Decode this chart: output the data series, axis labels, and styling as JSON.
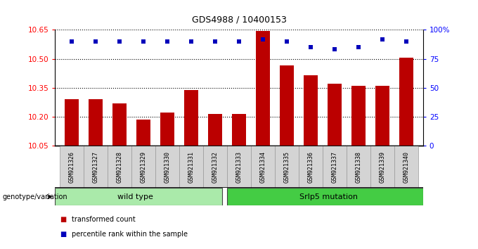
{
  "title": "GDS4988 / 10400153",
  "samples": [
    "GSM921326",
    "GSM921327",
    "GSM921328",
    "GSM921329",
    "GSM921330",
    "GSM921331",
    "GSM921332",
    "GSM921333",
    "GSM921334",
    "GSM921335",
    "GSM921336",
    "GSM921337",
    "GSM921338",
    "GSM921339",
    "GSM921340"
  ],
  "transformed_counts": [
    10.29,
    10.29,
    10.27,
    10.185,
    10.22,
    10.34,
    10.215,
    10.215,
    10.645,
    10.465,
    10.415,
    10.37,
    10.36,
    10.36,
    10.505
  ],
  "dot_y_values": [
    90,
    90,
    90,
    90,
    90,
    90,
    90,
    90,
    92,
    90,
    85,
    83,
    85,
    92,
    90
  ],
  "ylim_left": [
    10.05,
    10.65
  ],
  "ylim_right": [
    0,
    100
  ],
  "yticks_left": [
    10.05,
    10.2,
    10.35,
    10.5,
    10.65
  ],
  "yticks_right": [
    0,
    25,
    50,
    75,
    100
  ],
  "bar_color": "#bb0000",
  "dot_color": "#0000bb",
  "wild_type_count": 7,
  "wild_type_label": "wild type",
  "mutation_label": "Srlp5 mutation",
  "wt_color": "#aaeaaa",
  "mut_color": "#44cc44",
  "legend_bar_label": "transformed count",
  "legend_dot_label": "percentile rank within the sample",
  "plot_bg": "#ffffff"
}
